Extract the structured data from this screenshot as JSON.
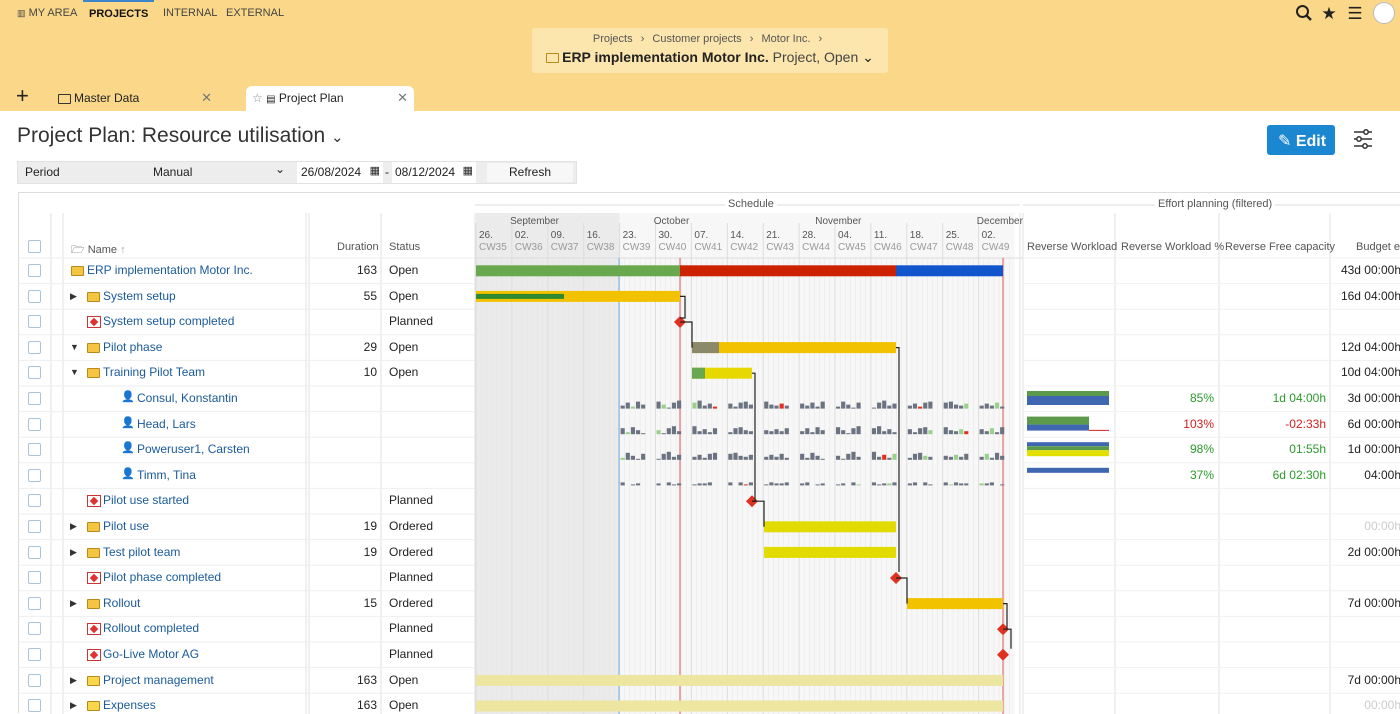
{
  "topnav": {
    "my_area": "MY AREA",
    "projects": "PROJECTS",
    "internal": "INTERNAL",
    "external": "EXTERNAL"
  },
  "breadcrumb": {
    "items": [
      "Projects",
      "Customer projects",
      "Motor Inc."
    ],
    "sep": "›",
    "title": "ERP implementation Motor Inc.",
    "subtitle": "Project, Open"
  },
  "tabs": [
    {
      "label": "Master Data"
    },
    {
      "label": "Project Plan"
    }
  ],
  "page": {
    "title": "Project Plan: Resource utilisation",
    "edit_label": "Edit"
  },
  "filter": {
    "period_label": "Period",
    "period_value": "Manual",
    "from": "26/08/2024",
    "dash": "-",
    "to": "08/12/2024",
    "refresh": "Refresh"
  },
  "columns": {
    "name": "Name",
    "duration": "Duration",
    "status": "Status",
    "schedule": "Schedule",
    "effort_group": "Effort planning (filtered)",
    "rw": "Reverse Workload",
    "rwp": "Reverse Workload %",
    "rfc": "Reverse Free capacity",
    "budget": "Budget e"
  },
  "months": [
    {
      "label": "September",
      "week": 1
    },
    {
      "label": "October",
      "week": 5
    },
    {
      "label": "November",
      "week": 9.5
    },
    {
      "label": "December",
      "week": 14
    }
  ],
  "weeks": [
    {
      "d": "26.",
      "cw": "CW35"
    },
    {
      "d": "02.",
      "cw": "CW36"
    },
    {
      "d": "09.",
      "cw": "CW37"
    },
    {
      "d": "16.",
      "cw": "CW38"
    },
    {
      "d": "23.",
      "cw": "CW39"
    },
    {
      "d": "30.",
      "cw": "CW40"
    },
    {
      "d": "07.",
      "cw": "CW41"
    },
    {
      "d": "14.",
      "cw": "CW42"
    },
    {
      "d": "21.",
      "cw": "CW43"
    },
    {
      "d": "28.",
      "cw": "CW44"
    },
    {
      "d": "04.",
      "cw": "CW45"
    },
    {
      "d": "11.",
      "cw": "CW46"
    },
    {
      "d": "18.",
      "cw": "CW47"
    },
    {
      "d": "25.",
      "cw": "CW48"
    },
    {
      "d": "02.",
      "cw": "CW49"
    }
  ],
  "rows": [
    {
      "name": "ERP implementation Motor Inc.",
      "indent": 0,
      "icon": "folder-icon",
      "expand": "",
      "duration": "163",
      "status": "Open",
      "rwp": "",
      "rfc": "",
      "budget": "43d 00:00h",
      "budget_muted": false
    },
    {
      "name": "System setup",
      "indent": 1,
      "icon": "folder-icon",
      "expand": "right",
      "duration": "55",
      "status": "Open",
      "rwp": "",
      "rfc": "",
      "budget": "16d 04:00h",
      "budget_muted": false
    },
    {
      "name": "System setup completed",
      "indent": 1,
      "icon": "milestone-icon",
      "expand": "",
      "duration": "",
      "status": "Planned",
      "rwp": "",
      "rfc": "",
      "budget": "",
      "budget_muted": false
    },
    {
      "name": "Pilot phase",
      "indent": 1,
      "icon": "folder-icon",
      "expand": "down",
      "duration": "29",
      "status": "Open",
      "rwp": "",
      "rfc": "",
      "budget": "12d 04:00h",
      "budget_muted": false
    },
    {
      "name": "Training Pilot Team",
      "indent": 2,
      "icon": "folder-icon",
      "expand": "down",
      "duration": "10",
      "status": "Open",
      "rwp": "",
      "rfc": "",
      "budget": "10d 04:00h",
      "budget_muted": false
    },
    {
      "name": "Consul, Konstantin",
      "indent": 3,
      "icon": "person-icon",
      "expand": "",
      "duration": "",
      "status": "",
      "rwp": "85%",
      "rfc": "1d 04:00h",
      "budget": "3d 00:00h",
      "budget_muted": false
    },
    {
      "name": "Head, Lars",
      "indent": 3,
      "icon": "person-icon",
      "expand": "",
      "duration": "",
      "status": "",
      "rwp": "103%",
      "rfc": "-02:33h",
      "budget": "6d 00:00h",
      "budget_muted": false
    },
    {
      "name": "Poweruser1, Carsten",
      "indent": 3,
      "icon": "person-icon",
      "expand": "",
      "duration": "",
      "status": "",
      "rwp": "98%",
      "rfc": "01:55h",
      "budget": "1d 00:00h",
      "budget_muted": false
    },
    {
      "name": "Timm, Tina",
      "indent": 3,
      "icon": "person-icon",
      "expand": "",
      "duration": "",
      "status": "",
      "rwp": "37%",
      "rfc": "6d 02:30h",
      "budget": "04:00h",
      "budget_muted": false
    },
    {
      "name": "Pilot use started",
      "indent": 2,
      "icon": "milestone-icon",
      "expand": "",
      "duration": "",
      "status": "Planned",
      "rwp": "",
      "rfc": "",
      "budget": "",
      "budget_muted": false
    },
    {
      "name": "Pilot use",
      "indent": 2,
      "icon": "folder-icon",
      "expand": "right",
      "duration": "19",
      "status": "Ordered",
      "rwp": "",
      "rfc": "",
      "budget": "00:00h",
      "budget_muted": true
    },
    {
      "name": "Test pilot team",
      "indent": 2,
      "icon": "folder-icon",
      "expand": "right",
      "duration": "19",
      "status": "Ordered",
      "rwp": "",
      "rfc": "",
      "budget": "2d 00:00h",
      "budget_muted": false
    },
    {
      "name": "Pilot phase completed",
      "indent": 1,
      "icon": "milestone-icon",
      "expand": "",
      "duration": "",
      "status": "Planned",
      "rwp": "",
      "rfc": "",
      "budget": "",
      "budget_muted": false
    },
    {
      "name": "Rollout",
      "indent": 1,
      "icon": "folder-icon",
      "expand": "right",
      "duration": "15",
      "status": "Ordered",
      "rwp": "",
      "rfc": "",
      "budget": "7d 00:00h",
      "budget_muted": false
    },
    {
      "name": "Rollout completed",
      "indent": 1,
      "icon": "milestone-icon",
      "expand": "",
      "duration": "",
      "status": "Planned",
      "rwp": "",
      "rfc": "",
      "budget": "",
      "budget_muted": false
    },
    {
      "name": "Go-Live Motor AG",
      "indent": 1,
      "icon": "milestone-icon",
      "expand": "",
      "duration": "",
      "status": "Planned",
      "rwp": "",
      "rfc": "",
      "budget": "",
      "budget_muted": false
    },
    {
      "name": "Project management",
      "indent": 1,
      "icon": "box-icon",
      "expand": "right",
      "duration": "163",
      "status": "Open",
      "rwp": "",
      "rfc": "",
      "budget": "7d 00:00h",
      "budget_muted": false
    },
    {
      "name": "Expenses",
      "indent": 1,
      "icon": "box-icon",
      "expand": "right",
      "duration": "163",
      "status": "Open",
      "rwp": "",
      "rfc": "",
      "budget": "00:00h",
      "budget_muted": true
    }
  ],
  "colors": {
    "accent": "#1b87d0",
    "header_bg": "#fbd889",
    "over": "#d0201e",
    "ok": "#2c9a2c"
  }
}
